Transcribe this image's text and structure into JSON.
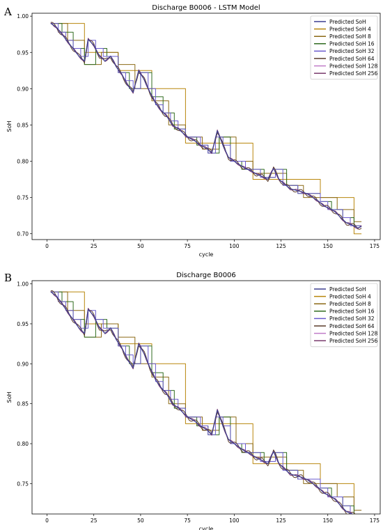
{
  "chart_data": [
    {
      "type": "line",
      "panel_label": "A",
      "title": "Discharge B0006 - LSTM Model",
      "xlabel": "cycle",
      "ylabel": "SoH",
      "xlim": [
        -8,
        178
      ],
      "ylim": [
        0.692,
        1.004
      ],
      "xticks": [
        "0",
        "25",
        "50",
        "75",
        "100",
        "125",
        "150",
        "175"
      ],
      "xtick_values": [
        0,
        25,
        50,
        75,
        100,
        125,
        150,
        175
      ],
      "yticks": [
        "0.70",
        "0.75",
        "0.80",
        "0.85",
        "0.90",
        "0.95",
        "1.00"
      ],
      "ytick_values": [
        0.7,
        0.75,
        0.8,
        0.85,
        0.9,
        0.95,
        1.0
      ],
      "legend_position": "top-right",
      "series": [
        {
          "name": "Predicted SoH",
          "color": "#3b3f8f",
          "step": 0
        },
        {
          "name": "Predicted SoH 4",
          "color": "#b8860b",
          "step": 4
        },
        {
          "name": "Predicted SoH 8",
          "color": "#8b6914",
          "step": 8
        },
        {
          "name": "Predicted SoH 16",
          "color": "#2f6b1f",
          "step": 16
        },
        {
          "name": "Predicted SoH 32",
          "color": "#6a5acd",
          "step": 32
        },
        {
          "name": "Predicted SoH 64",
          "color": "#5a3a2a",
          "step": 64
        },
        {
          "name": "Predicted SoH 128",
          "color": "#c07cc8",
          "step": 128
        },
        {
          "name": "Predicted SoH 256",
          "color": "#7a3b6e",
          "step": 256
        }
      ],
      "base_curve": {
        "x": [
          2,
          5,
          8,
          11,
          14,
          17,
          20,
          22,
          25,
          28,
          31,
          34,
          37,
          40,
          43,
          46,
          49,
          52,
          55,
          58,
          61,
          64,
          67,
          70,
          73,
          76,
          79,
          82,
          85,
          88,
          91,
          94,
          97,
          100,
          103,
          106,
          109,
          112,
          115,
          118,
          121,
          124,
          127,
          130,
          133,
          136,
          139,
          142,
          145,
          148,
          151,
          154,
          157,
          160,
          163,
          166,
          168
        ],
        "y": [
          0.99,
          0.985,
          0.975,
          0.965,
          0.955,
          0.945,
          0.938,
          0.968,
          0.96,
          0.945,
          0.938,
          0.945,
          0.93,
          0.92,
          0.905,
          0.895,
          0.925,
          0.912,
          0.895,
          0.88,
          0.87,
          0.862,
          0.85,
          0.845,
          0.838,
          0.832,
          0.828,
          0.822,
          0.818,
          0.812,
          0.842,
          0.822,
          0.805,
          0.8,
          0.795,
          0.79,
          0.787,
          0.782,
          0.779,
          0.775,
          0.79,
          0.775,
          0.768,
          0.762,
          0.76,
          0.758,
          0.755,
          0.75,
          0.745,
          0.738,
          0.735,
          0.73,
          0.722,
          0.715,
          0.712,
          0.708,
          0.71
        ]
      }
    },
    {
      "type": "line",
      "panel_label": "B",
      "title": "Discharge B0006",
      "xlabel": "cycle",
      "ylabel": "SoH",
      "xlim": [
        -8,
        178
      ],
      "ylim": [
        0.712,
        1.004
      ],
      "xticks": [
        "0",
        "25",
        "50",
        "75",
        "100",
        "125",
        "150",
        "175"
      ],
      "xtick_values": [
        0,
        25,
        50,
        75,
        100,
        125,
        150,
        175
      ],
      "yticks": [
        "0.75",
        "0.80",
        "0.85",
        "0.90",
        "0.95",
        "1.00"
      ],
      "ytick_values": [
        0.75,
        0.8,
        0.85,
        0.9,
        0.95,
        1.0
      ],
      "legend_position": "top-right",
      "series": [
        {
          "name": "Predicted SoH",
          "color": "#3b3f8f",
          "step": 0
        },
        {
          "name": "Predicted SoH 4",
          "color": "#b8860b",
          "step": 4
        },
        {
          "name": "Predicted SoH 8",
          "color": "#8b6914",
          "step": 8
        },
        {
          "name": "Predicted SoH 16",
          "color": "#2f6b1f",
          "step": 16
        },
        {
          "name": "Predicted SoH 32",
          "color": "#6a5acd",
          "step": 32
        },
        {
          "name": "Predicted SoH 64",
          "color": "#5a3a2a",
          "step": 64
        },
        {
          "name": "Predicted SoH 128",
          "color": "#c07cc8",
          "step": 128
        },
        {
          "name": "Predicted SoH 256",
          "color": "#7a3b6e",
          "step": 256
        }
      ],
      "base_curve": {
        "x": [
          2,
          5,
          8,
          11,
          14,
          17,
          20,
          22,
          25,
          28,
          31,
          34,
          37,
          40,
          43,
          46,
          49,
          52,
          55,
          58,
          61,
          64,
          67,
          70,
          73,
          76,
          79,
          82,
          85,
          88,
          91,
          94,
          97,
          100,
          103,
          106,
          109,
          112,
          115,
          118,
          121,
          124,
          127,
          130,
          133,
          136,
          139,
          142,
          145,
          148,
          151,
          154,
          157,
          160,
          163,
          166,
          168
        ],
        "y": [
          0.99,
          0.985,
          0.975,
          0.965,
          0.955,
          0.945,
          0.938,
          0.968,
          0.96,
          0.945,
          0.938,
          0.945,
          0.93,
          0.92,
          0.905,
          0.895,
          0.925,
          0.912,
          0.895,
          0.88,
          0.87,
          0.862,
          0.85,
          0.845,
          0.838,
          0.832,
          0.828,
          0.822,
          0.818,
          0.812,
          0.842,
          0.822,
          0.805,
          0.8,
          0.795,
          0.79,
          0.787,
          0.782,
          0.779,
          0.775,
          0.79,
          0.775,
          0.768,
          0.762,
          0.76,
          0.758,
          0.755,
          0.75,
          0.745,
          0.738,
          0.735,
          0.73,
          0.722,
          0.715,
          0.712,
          0.708,
          0.71
        ]
      }
    }
  ]
}
